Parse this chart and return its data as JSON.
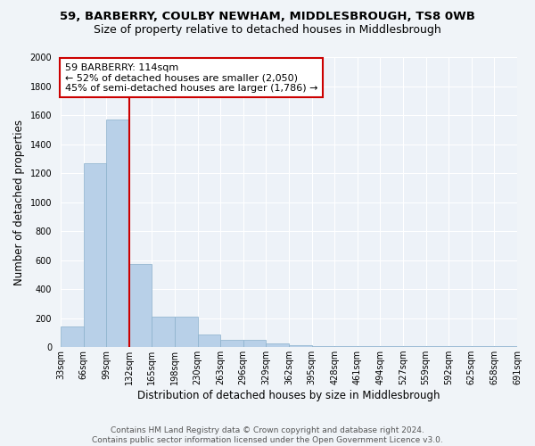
{
  "title1": "59, BARBERRY, COULBY NEWHAM, MIDDLESBROUGH, TS8 0WB",
  "title2": "Size of property relative to detached houses in Middlesbrough",
  "xlabel": "Distribution of detached houses by size in Middlesbrough",
  "ylabel": "Number of detached properties",
  "bar_values": [
    140,
    1270,
    1570,
    570,
    210,
    210,
    90,
    50,
    50,
    25,
    15,
    10,
    10,
    5,
    5,
    5,
    5,
    5,
    5,
    5
  ],
  "bin_labels": [
    "33sqm",
    "66sqm",
    "99sqm",
    "132sqm",
    "165sqm",
    "198sqm",
    "230sqm",
    "263sqm",
    "296sqm",
    "329sqm",
    "362sqm",
    "395sqm",
    "428sqm",
    "461sqm",
    "494sqm",
    "527sqm",
    "559sqm",
    "592sqm",
    "625sqm",
    "658sqm",
    "691sqm"
  ],
  "bar_color": "#b8d0e8",
  "bar_edge_color": "#8ab0cc",
  "vline_index": 2,
  "annotation_line1": "59 BARBERRY: 114sqm",
  "annotation_line2": "← 52% of detached houses are smaller (2,050)",
  "annotation_line3": "45% of semi-detached houses are larger (1,786) →",
  "annotation_box_color": "#ffffff",
  "annotation_box_edge_color": "#cc0000",
  "vline_color": "#cc0000",
  "ylim": [
    0,
    2000
  ],
  "yticks": [
    0,
    200,
    400,
    600,
    800,
    1000,
    1200,
    1400,
    1600,
    1800,
    2000
  ],
  "footer": "Contains HM Land Registry data © Crown copyright and database right 2024.\nContains public sector information licensed under the Open Government Licence v3.0.",
  "bg_color": "#f0f4f8",
  "plot_bg_color": "#edf2f8",
  "grid_color": "#ffffff",
  "title_fontsize": 9.5,
  "subtitle_fontsize": 9,
  "axis_label_fontsize": 8.5,
  "tick_fontsize": 7,
  "annotation_fontsize": 8,
  "footer_fontsize": 6.5
}
